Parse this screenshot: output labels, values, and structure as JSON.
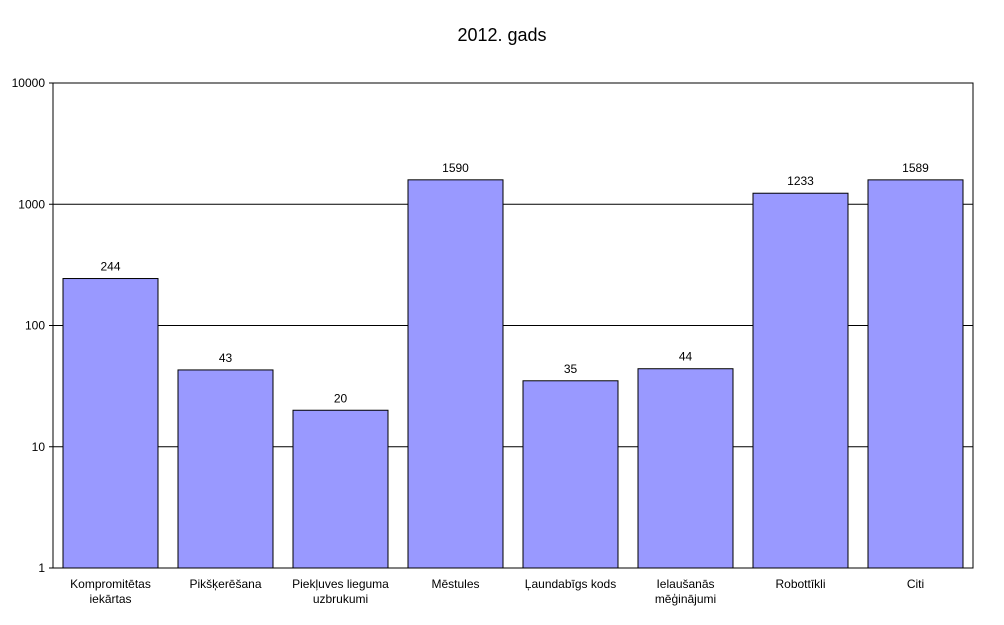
{
  "chart_data": {
    "type": "bar",
    "title": "2012. gads",
    "xlabel": "",
    "ylabel": "",
    "yscale": "log",
    "ylim": [
      1,
      10000
    ],
    "yticks": [
      "1",
      "10",
      "100",
      "1000",
      "10000"
    ],
    "grid": true,
    "legend": "none",
    "colors": {
      "bar_fill": "#9999ff",
      "bar_stroke": "#000000",
      "grid": "#000000",
      "plot_background": "#ffffff"
    },
    "categories": [
      [
        "Kompromitētas",
        "iekārtas"
      ],
      [
        "Pikšķerēšana"
      ],
      [
        "Piekļuves lieguma",
        "uzbrukumi"
      ],
      [
        "Mēstules"
      ],
      [
        "Ļaundabīgs kods"
      ],
      [
        "Ielaušanās",
        "mēģinājumi"
      ],
      [
        "Robottīkli"
      ],
      [
        "Citi"
      ]
    ],
    "values": [
      244,
      43,
      20,
      1590,
      35,
      44,
      1233,
      1589
    ]
  }
}
